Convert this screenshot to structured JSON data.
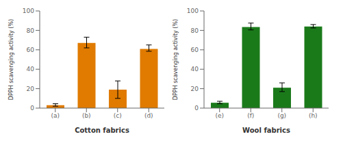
{
  "chart_data": [
    {
      "type": "bar",
      "categories": [
        "(a)",
        "(b)",
        "(c)",
        "(d)"
      ],
      "values": [
        3.0,
        67.0,
        19.0,
        61.0
      ],
      "errors_pos": [
        1.5,
        6.0,
        9.0,
        4.0
      ],
      "errors_neg": [
        1.0,
        5.0,
        9.0,
        2.5
      ],
      "color": "#E07B00",
      "xlabel": "Cotton fabrics",
      "ylabel": "DPPH scavenging activity (%)",
      "ylim": [
        0,
        100
      ],
      "yticks": [
        0,
        20,
        40,
        60,
        80,
        100
      ]
    },
    {
      "type": "bar",
      "categories": [
        "(e)",
        "(f)",
        "(g)",
        "(h)"
      ],
      "values": [
        5.5,
        83.5,
        21.0,
        84.0
      ],
      "errors_pos": [
        1.5,
        4.0,
        5.0,
        2.0
      ],
      "errors_neg": [
        1.0,
        3.0,
        4.0,
        1.5
      ],
      "color": "#1A7A1A",
      "xlabel": "Wool fabrics",
      "ylabel": "DPPH scavenging activity (%)",
      "ylim": [
        0,
        100
      ],
      "yticks": [
        0,
        20,
        40,
        60,
        80,
        100
      ]
    }
  ]
}
